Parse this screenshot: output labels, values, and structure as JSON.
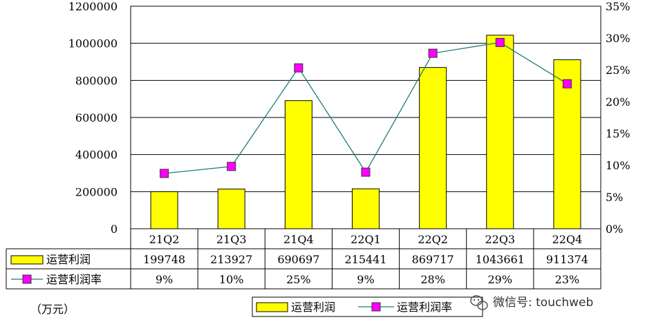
{
  "chart_data": {
    "type": "bar",
    "categories": [
      "21Q2",
      "21Q3",
      "21Q4",
      "22Q1",
      "22Q2",
      "22Q3",
      "22Q4"
    ],
    "series": [
      {
        "name": "运营利润",
        "type": "bar",
        "axis": "left",
        "values": [
          199748,
          213927,
          690697,
          215441,
          869717,
          1043661,
          911374
        ],
        "color": "#ffff00"
      },
      {
        "name": "运营利润率",
        "type": "line",
        "axis": "right",
        "values": [
          9,
          10,
          25,
          9,
          28,
          29,
          23
        ],
        "plotted_values": [
          8.7,
          9.8,
          25.3,
          8.9,
          27.6,
          29.3,
          22.8
        ],
        "color": "#ff00ff",
        "line_color": "#1f7a7a"
      }
    ],
    "left_axis": {
      "ticks": [
        "0",
        "200000",
        "400000",
        "600000",
        "800000",
        "1000000",
        "1200000"
      ],
      "min": 0,
      "max": 1200000
    },
    "right_axis": {
      "ticks": [
        "0%",
        "5%",
        "10%",
        "15%",
        "20%",
        "25%",
        "30%",
        "35%"
      ],
      "min": 0,
      "max": 35
    },
    "table": {
      "rows": [
        {
          "label": "运营利润",
          "cells": [
            "199748",
            "213927",
            "690697",
            "215441",
            "869717",
            "1043661",
            "911374"
          ]
        },
        {
          "label": "运营利润率",
          "cells": [
            "9%",
            "10%",
            "25%",
            "9%",
            "28%",
            "29%",
            "23%"
          ]
        }
      ]
    },
    "unit": "（万元）",
    "legend": {
      "position": "bottom",
      "items": [
        "运营利润",
        "运营利润率"
      ]
    },
    "watermark": "微信号: touchweb",
    "grid": true
  }
}
